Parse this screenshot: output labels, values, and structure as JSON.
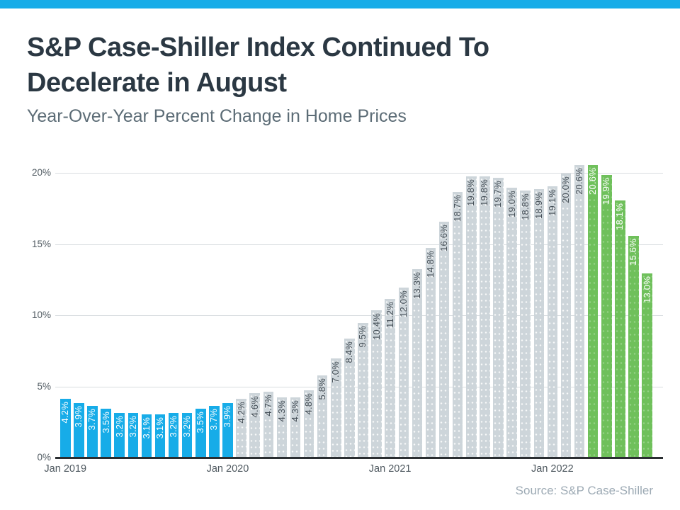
{
  "page": {
    "accent_bar_color": "#17ACE8"
  },
  "header": {
    "title_line1": "S&P Case-Shiller Index Continued To",
    "title_line2": "Decelerate in August",
    "subtitle": "Year-Over-Year Percent Change in Home Prices"
  },
  "footer": {
    "source": "Source: S&P Case-Shiller"
  },
  "chart_data": {
    "type": "bar",
    "title": "S&P Case-Shiller Index Continued To Decelerate in August",
    "subtitle": "Year-Over-Year Percent Change in Home Prices",
    "xlabel": "",
    "ylabel": "",
    "ylim": [
      0,
      21
    ],
    "grid": "horizontal",
    "legend": "none",
    "value_label_format": "percent_one_decimal",
    "y_ticks": [
      {
        "value": 0,
        "label": "0%"
      },
      {
        "value": 5,
        "label": "5%"
      },
      {
        "value": 10,
        "label": "10%"
      },
      {
        "value": 15,
        "label": "15%"
      },
      {
        "value": 20,
        "label": "20%"
      }
    ],
    "x_ticks": [
      {
        "bar_index": 0,
        "label": "Jan 2019"
      },
      {
        "bar_index": 12,
        "label": "Jan 2020"
      },
      {
        "bar_index": 24,
        "label": "Jan 2021"
      },
      {
        "bar_index": 36,
        "label": "Jan 2022"
      }
    ],
    "group_colors": {
      "blue": "#17ACE8",
      "gray": "#CDD5DA",
      "green": "#6FC05B"
    },
    "label_text_colors": {
      "blue": "#FFFFFF",
      "gray": "#454F57",
      "green": "#FFFFFF"
    },
    "bars": [
      {
        "value": 4.2,
        "group": "blue"
      },
      {
        "value": 3.9,
        "group": "blue"
      },
      {
        "value": 3.7,
        "group": "blue"
      },
      {
        "value": 3.5,
        "group": "blue"
      },
      {
        "value": 3.2,
        "group": "blue"
      },
      {
        "value": 3.2,
        "group": "blue"
      },
      {
        "value": 3.1,
        "group": "blue"
      },
      {
        "value": 3.1,
        "group": "blue"
      },
      {
        "value": 3.2,
        "group": "blue"
      },
      {
        "value": 3.2,
        "group": "blue"
      },
      {
        "value": 3.5,
        "group": "blue"
      },
      {
        "value": 3.7,
        "group": "blue"
      },
      {
        "value": 3.9,
        "group": "blue"
      },
      {
        "value": 4.2,
        "group": "gray"
      },
      {
        "value": 4.6,
        "group": "gray"
      },
      {
        "value": 4.7,
        "group": "gray"
      },
      {
        "value": 4.3,
        "group": "gray"
      },
      {
        "value": 4.3,
        "group": "gray"
      },
      {
        "value": 4.8,
        "group": "gray"
      },
      {
        "value": 5.8,
        "group": "gray"
      },
      {
        "value": 7.0,
        "group": "gray"
      },
      {
        "value": 8.4,
        "group": "gray"
      },
      {
        "value": 9.5,
        "group": "gray"
      },
      {
        "value": 10.4,
        "group": "gray"
      },
      {
        "value": 11.2,
        "group": "gray"
      },
      {
        "value": 12.0,
        "group": "gray"
      },
      {
        "value": 13.3,
        "group": "gray"
      },
      {
        "value": 14.8,
        "group": "gray"
      },
      {
        "value": 16.6,
        "group": "gray"
      },
      {
        "value": 18.7,
        "group": "gray"
      },
      {
        "value": 19.8,
        "group": "gray"
      },
      {
        "value": 19.8,
        "group": "gray"
      },
      {
        "value": 19.7,
        "group": "gray"
      },
      {
        "value": 19.0,
        "group": "gray"
      },
      {
        "value": 18.8,
        "group": "gray"
      },
      {
        "value": 18.9,
        "group": "gray"
      },
      {
        "value": 19.1,
        "group": "gray"
      },
      {
        "value": 20.0,
        "group": "gray"
      },
      {
        "value": 20.6,
        "group": "gray"
      },
      {
        "value": 20.6,
        "group": "green"
      },
      {
        "value": 19.9,
        "group": "green"
      },
      {
        "value": 18.1,
        "group": "green"
      },
      {
        "value": 15.6,
        "group": "green"
      },
      {
        "value": 13.0,
        "group": "green"
      }
    ]
  }
}
